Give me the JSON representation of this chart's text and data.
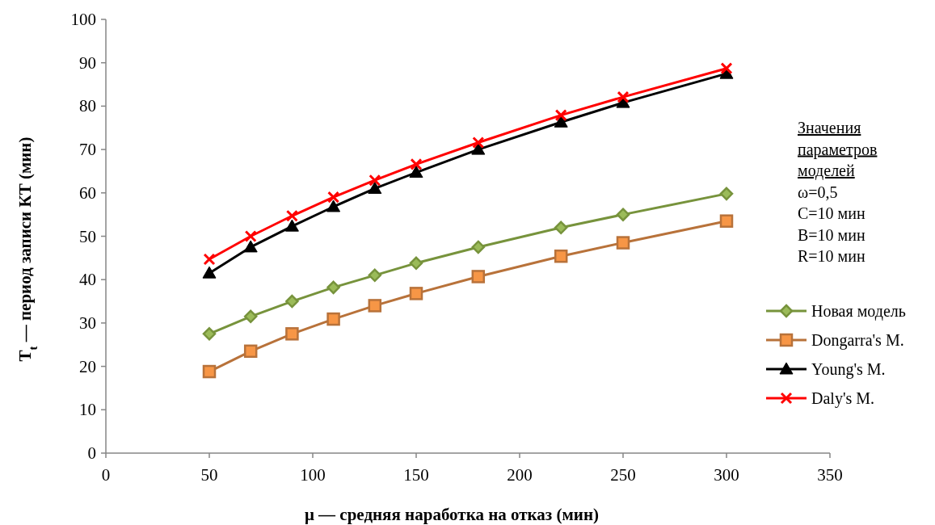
{
  "chart_data": {
    "type": "line",
    "xlabel": "μ — средняя наработка на отказ (мин)",
    "ylabel": "T$_{t}$ — период записи КТ (мин)",
    "x": [
      50,
      70,
      90,
      110,
      130,
      150,
      180,
      220,
      250,
      300
    ],
    "xlim": [
      0,
      350
    ],
    "xticks": [
      0,
      50,
      100,
      150,
      200,
      250,
      300,
      350
    ],
    "ylim": [
      0,
      100
    ],
    "yticks": [
      0,
      10,
      20,
      30,
      40,
      50,
      60,
      70,
      80,
      90,
      100
    ],
    "grid": false,
    "legend": "right",
    "line_style": "solid",
    "series": [
      {
        "name": "Новая модель",
        "color": "#77933c",
        "marker": "diamond",
        "values": [
          27.5,
          31.5,
          35,
          38.2,
          41,
          43.8,
          47.5,
          52,
          55,
          59.8
        ]
      },
      {
        "name": "Dongarra's M.",
        "color": "#b8723a",
        "marker": "square",
        "values": [
          18.8,
          23.5,
          27.5,
          30.9,
          34,
          36.8,
          40.7,
          45.4,
          48.5,
          53.5
        ]
      },
      {
        "name": "Young's M.",
        "color": "#000000",
        "marker": "triangle",
        "values": [
          41.5,
          47.5,
          52.3,
          56.8,
          61,
          64.7,
          70,
          76.3,
          80.8,
          87.5
        ]
      },
      {
        "name": "Daly's M.",
        "color": "#ff0000",
        "marker": "cross",
        "values": [
          44.7,
          50,
          54.7,
          59,
          62.9,
          66.6,
          71.6,
          77.9,
          82.1,
          88.7
        ]
      }
    ],
    "annotations": [
      "Значения параметров моделей",
      "ω=0,5",
      "C=10 мин",
      "B=10 мин",
      "R=10 мин"
    ]
  }
}
